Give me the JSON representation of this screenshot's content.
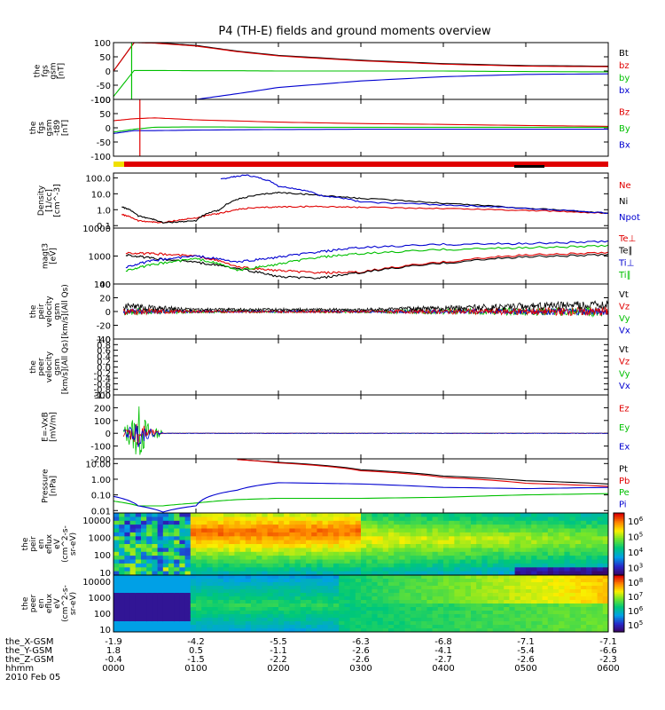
{
  "title": "P4 (TH-E) fields and ground moments overview",
  "colors": {
    "black": "#000000",
    "red": "#e00000",
    "green": "#00c000",
    "blue": "#0000d0",
    "yellow": "#f0e000"
  },
  "time_axis": {
    "ticks": [
      "0000",
      "0100",
      "0200",
      "0300",
      "0400",
      "0500",
      "0600"
    ],
    "hours": [
      0,
      1,
      2,
      3,
      4,
      5,
      6
    ],
    "rows": [
      {
        "label": "the_X-GSM",
        "values": [
          "-1.9",
          "-4.2",
          "-5.5",
          "-6.3",
          "-6.8",
          "-7.1",
          "-7.1"
        ]
      },
      {
        "label": "the_Y-GSM",
        "values": [
          "1.8",
          "0.5",
          "-1.1",
          "-2.6",
          "-4.1",
          "-5.4",
          "-6.6"
        ]
      },
      {
        "label": "the_Z-GSM",
        "values": [
          "-0.4",
          "-1.5",
          "-2.2",
          "-2.6",
          "-2.7",
          "-2.6",
          "-2.3"
        ]
      },
      {
        "label": "hhmm",
        "values": []
      }
    ],
    "date": "2010 Feb 05"
  },
  "panels": [
    {
      "id": "fgs",
      "ylabel": [
        "the",
        "fgs",
        "gsm",
        "[nT]"
      ],
      "log": false,
      "ylim": [
        -100,
        100
      ],
      "yticks": [
        -100,
        -50,
        0,
        50,
        100
      ],
      "yticklabels": [
        "-100",
        "-50",
        "0",
        "50",
        "100"
      ],
      "legend": [
        {
          "name": "Bt",
          "color": "#000000"
        },
        {
          "name": "bz",
          "color": "#e00000"
        },
        {
          "name": "by",
          "color": "#00c000"
        },
        {
          "name": "bx",
          "color": "#0000d0"
        }
      ]
    },
    {
      "id": "fgs-t89",
      "ylabel": [
        "the",
        "fgs",
        "gsm",
        "-t89",
        "[nT]"
      ],
      "log": false,
      "ylim": [
        -100,
        100
      ],
      "yticks": [
        -100,
        -50,
        0,
        50,
        100
      ],
      "yticklabels": [
        "-100",
        "-50",
        "0",
        "50",
        "100"
      ],
      "legend": [
        {
          "name": "Bz",
          "color": "#e00000"
        },
        {
          "name": "By",
          "color": "#00c000"
        },
        {
          "name": "Bx",
          "color": "#0000d0"
        }
      ]
    },
    {
      "id": "density",
      "ylabel": [
        "Density",
        "[1/cc]",
        "[cm^-3]"
      ],
      "log": true,
      "ylim": [
        0.07,
        200
      ],
      "yticks": [
        0.1,
        1,
        10,
        100
      ],
      "yticklabels": [
        "0.1",
        "1.0",
        "10.0",
        "100.0"
      ],
      "legend": [
        {
          "name": "Ne",
          "color": "#e00000"
        },
        {
          "name": "Ni",
          "color": "#000000"
        },
        {
          "name": "Npot",
          "color": "#0000d0"
        }
      ]
    },
    {
      "id": "temperature",
      "ylabel": [
        "magt3",
        "[eV]"
      ],
      "log": true,
      "ylim": [
        100,
        10000
      ],
      "yticks": [
        100,
        1000,
        10000
      ],
      "yticklabels": [
        "100",
        "1000",
        "10000"
      ],
      "legend": [
        {
          "name": "Te⊥",
          "color": "#e00000"
        },
        {
          "name": "Te∥",
          "color": "#000000"
        },
        {
          "name": "Ti⊥",
          "color": "#0000d0"
        },
        {
          "name": "Ti∥",
          "color": "#00c000"
        }
      ]
    },
    {
      "id": "peir-velocity",
      "ylabel": [
        "the",
        "peir",
        "velocity",
        "gsm",
        "[km/s](All Qs)"
      ],
      "log": false,
      "ylim": [
        -40,
        40
      ],
      "yticks": [
        -40,
        -20,
        0,
        20,
        40
      ],
      "yticklabels": [
        "-40",
        "-20",
        "0",
        "20",
        "40"
      ],
      "legend": [
        {
          "name": "Vt",
          "color": "#000000"
        },
        {
          "name": "Vz",
          "color": "#e00000"
        },
        {
          "name": "Vy",
          "color": "#00c000"
        },
        {
          "name": "Vx",
          "color": "#0000d0"
        }
      ]
    },
    {
      "id": "peer-velocity",
      "ylabel": [
        "the",
        "peer",
        "velocity",
        "gsm",
        "[km/s](All Qs)"
      ],
      "log": false,
      "ylim": [
        -1,
        1
      ],
      "yticks": [
        -1,
        -0.8,
        -0.6,
        -0.4,
        -0.2,
        0,
        0.2,
        0.4,
        0.6,
        0.8,
        1
      ],
      "yticklabels": [
        "-1.0",
        "-0.8",
        "-0.6",
        "-0.4",
        "-0.2",
        "0.0",
        "0.2",
        "0.4",
        "0.6",
        "0.8",
        "1.0"
      ],
      "legend": [
        {
          "name": "Vt",
          "color": "#000000"
        },
        {
          "name": "Vz",
          "color": "#e00000"
        },
        {
          "name": "Vy",
          "color": "#00c000"
        },
        {
          "name": "Vx",
          "color": "#0000d0"
        }
      ]
    },
    {
      "id": "efield",
      "ylabel": [
        "E=-VxB",
        "[mV/m]"
      ],
      "log": false,
      "ylim": [
        -200,
        300
      ],
      "yticks": [
        -200,
        -100,
        0,
        100,
        200,
        300
      ],
      "yticklabels": [
        "-200",
        "-100",
        "0",
        "100",
        "200",
        "300"
      ],
      "legend": [
        {
          "name": "Ez",
          "color": "#e00000"
        },
        {
          "name": "Ey",
          "color": "#00c000"
        },
        {
          "name": "Ex",
          "color": "#0000d0"
        }
      ]
    },
    {
      "id": "pressure",
      "ylabel": [
        "Pressure",
        "[nPa]"
      ],
      "log": true,
      "ylim": [
        0.007,
        20
      ],
      "yticks": [
        0.01,
        0.1,
        1,
        10
      ],
      "yticklabels": [
        "0.01",
        "0.10",
        "1.00",
        "10.00"
      ],
      "legend": [
        {
          "name": "Pt",
          "color": "#000000"
        },
        {
          "name": "Pb",
          "color": "#e00000"
        },
        {
          "name": "Pe",
          "color": "#00c000"
        },
        {
          "name": "Pi",
          "color": "#0000d0"
        }
      ]
    },
    {
      "id": "peir-eflux",
      "ylabel": [
        "the",
        "peir",
        "en",
        "eflux",
        "eV",
        "(cm^2-s-",
        "sr-eV)"
      ],
      "log": true,
      "ylim": [
        7,
        25000
      ],
      "yticks": [
        10,
        100,
        1000,
        10000
      ],
      "yticklabels": [
        "10",
        "100",
        "1000",
        "10000"
      ],
      "colorbar": {
        "labels": [
          "10^3",
          "10^4",
          "10^5",
          "10^6"
        ],
        "exponents": [
          "3",
          "4",
          "5",
          "6"
        ]
      }
    },
    {
      "id": "peer-eflux",
      "ylabel": [
        "the",
        "peer",
        "en",
        "eflux",
        "eV",
        "(cm^2-s-",
        "sr-eV)"
      ],
      "log": true,
      "ylim": [
        7,
        25000
      ],
      "yticks": [
        10,
        100,
        1000,
        10000
      ],
      "yticklabels": [
        "10",
        "100",
        "1000",
        "10000"
      ],
      "colorbar": {
        "labels": [
          "10^5",
          "10^6",
          "10^7",
          "10^8"
        ],
        "exponents": [
          "5",
          "6",
          "7",
          "8"
        ]
      }
    }
  ],
  "chart_data": [
    {
      "type": "line",
      "panel": "fgs",
      "xlabel": "hhmm",
      "ylabel": "the fgs gsm [nT]",
      "ylim": [
        -100,
        100
      ],
      "x": [
        0,
        0.25,
        0.5,
        1,
        1.5,
        2,
        3,
        4,
        5,
        6
      ],
      "series": [
        {
          "name": "Bt",
          "values": [
            0,
            100,
            100,
            90,
            70,
            55,
            38,
            26,
            19,
            17
          ]
        },
        {
          "name": "bz",
          "values": [
            0,
            100,
            98,
            88,
            68,
            53,
            36,
            24,
            17,
            15
          ]
        },
        {
          "name": "by",
          "values": [
            -90,
            2,
            2,
            1,
            1,
            0,
            0,
            0,
            -2,
            -3
          ]
        },
        {
          "name": "bx",
          "values": [
            null,
            null,
            null,
            -100,
            -80,
            -58,
            -35,
            -20,
            -12,
            -10
          ]
        }
      ]
    },
    {
      "type": "line",
      "panel": "fgs-t89",
      "xlabel": "hhmm",
      "ylabel": "the fgs gsm -t89 [nT]",
      "ylim": [
        -100,
        100
      ],
      "x": [
        0,
        0.25,
        0.5,
        1,
        2,
        3,
        4,
        5,
        6
      ],
      "series": [
        {
          "name": "Bz",
          "values": [
            25,
            32,
            35,
            28,
            20,
            15,
            12,
            8,
            5
          ]
        },
        {
          "name": "By",
          "values": [
            -15,
            -5,
            2,
            3,
            2,
            2,
            2,
            2,
            2
          ]
        },
        {
          "name": "Bx",
          "values": [
            -20,
            -10,
            -10,
            -8,
            -6,
            -5,
            -5,
            -5,
            -5
          ]
        }
      ]
    },
    {
      "type": "line",
      "panel": "density",
      "xlabel": "hhmm",
      "ylabel": "Density [1/cc]",
      "log": true,
      "x": [
        0.1,
        0.3,
        0.6,
        1,
        1.3,
        1.6,
        2,
        2.5,
        3,
        4,
        5,
        6
      ],
      "series": [
        {
          "name": "Ne",
          "values": [
            0.5,
            0.2,
            0.15,
            0.3,
            0.6,
            1.2,
            1.5,
            1.6,
            1.4,
            1.2,
            0.9,
            0.6
          ]
        },
        {
          "name": "Ni",
          "values": [
            1.5,
            0.4,
            0.15,
            0.2,
            1,
            6,
            12,
            8,
            5,
            2.5,
            1.2,
            0.6
          ]
        },
        {
          "name": "Npot",
          "values": [
            null,
            null,
            null,
            null,
            80,
            150,
            30,
            8,
            3,
            2,
            1.2,
            0.6
          ]
        }
      ]
    },
    {
      "type": "line",
      "panel": "temperature",
      "xlabel": "hhmm",
      "ylabel": "magt3 [eV]",
      "log": true,
      "x": [
        0.15,
        0.5,
        1,
        1.5,
        2,
        2.5,
        3,
        4,
        5,
        6
      ],
      "series": [
        {
          "name": "Te⊥",
          "values": [
            1300,
            1200,
            1000,
            400,
            300,
            250,
            260,
            600,
            1100,
            1300
          ]
        },
        {
          "name": "Te∥",
          "values": [
            1100,
            800,
            600,
            350,
            180,
            160,
            250,
            550,
            950,
            1100
          ]
        },
        {
          "name": "Ti⊥",
          "values": [
            400,
            700,
            1000,
            600,
            900,
            1400,
            2000,
            2600,
            2800,
            3300
          ]
        },
        {
          "name": "Ti∥",
          "values": [
            300,
            500,
            800,
            300,
            500,
            900,
            1200,
            1700,
            2000,
            2300
          ]
        }
      ]
    },
    {
      "type": "line",
      "panel": "peir-velocity",
      "xlabel": "hhmm",
      "ylabel": "the peir velocity gsm [km/s]",
      "ylim": [
        -40,
        40
      ],
      "series": [
        {
          "name": "Vt",
          "values": [
            12,
            10,
            4,
            2,
            2,
            4,
            8,
            14
          ]
        },
        {
          "name": "Vz",
          "values": [
            0,
            0,
            0,
            0,
            0,
            0,
            0,
            0
          ]
        },
        {
          "name": "Vy",
          "values": [
            0,
            0,
            0,
            0,
            0,
            0,
            0,
            0
          ]
        },
        {
          "name": "Vx",
          "values": [
            0,
            0,
            0,
            0,
            0,
            0,
            0,
            0
          ]
        }
      ]
    },
    {
      "type": "line",
      "panel": "efield",
      "xlabel": "hhmm",
      "ylabel": "E=-VxB [mV/m]",
      "ylim": [
        -200,
        300
      ],
      "series": [
        {
          "name": "Ez",
          "values": [
            0,
            80,
            0,
            0,
            0,
            0,
            0
          ]
        },
        {
          "name": "Ey",
          "values": [
            0,
            250,
            0,
            0,
            0,
            0,
            0
          ]
        },
        {
          "name": "Ex",
          "values": [
            0,
            -100,
            0,
            0,
            0,
            0,
            0
          ]
        }
      ]
    },
    {
      "type": "line",
      "panel": "pressure",
      "xlabel": "hhmm",
      "ylabel": "Pressure [nPa]",
      "log": true,
      "x": [
        0,
        0.3,
        0.6,
        1,
        1.5,
        2,
        3,
        4,
        5,
        6
      ],
      "series": [
        {
          "name": "Pt",
          "values": [
            null,
            null,
            null,
            null,
            18,
            12,
            4,
            1.6,
            0.8,
            0.5
          ]
        },
        {
          "name": "Pb",
          "values": [
            null,
            null,
            null,
            null,
            18,
            11,
            3.5,
            1.3,
            0.55,
            0.35
          ]
        },
        {
          "name": "Pe",
          "values": [
            0.04,
            0.02,
            0.02,
            0.03,
            0.05,
            0.06,
            0.06,
            0.07,
            0.1,
            0.12
          ]
        },
        {
          "name": "Pi",
          "values": [
            0.08,
            0.02,
            0.008,
            0.02,
            0.2,
            0.6,
            0.5,
            0.3,
            0.25,
            0.3
          ]
        }
      ]
    },
    {
      "type": "heatmap",
      "panel": "peir-eflux",
      "xlabel": "hhmm",
      "ylabel": "the peir en eflux eV/(cm^2-s-sr-eV)",
      "colorbar": [
        "10^3",
        "10^4",
        "10^5",
        "10^6"
      ]
    },
    {
      "type": "heatmap",
      "panel": "peer-eflux",
      "xlabel": "hhmm",
      "ylabel": "the peer en eflux eV/(cm^2-s-sr-eV)",
      "colorbar": [
        "10^5",
        "10^6",
        "10^7",
        "10^8"
      ]
    }
  ]
}
